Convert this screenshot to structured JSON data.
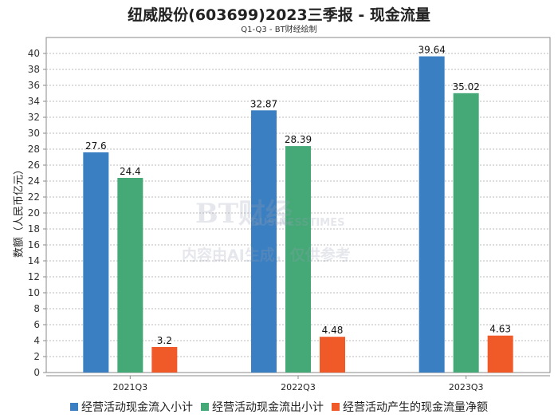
{
  "chart_data": {
    "type": "bar",
    "title": "纽威股份(603699)2023三季报 - 现金流量",
    "subtitle": "Q1-Q3 - BT财经绘制",
    "xlabel": "",
    "ylabel": "数额（人民币亿元）",
    "ylim": [
      0,
      42
    ],
    "yticks": [
      0,
      2,
      4,
      6,
      8,
      10,
      12,
      14,
      16,
      18,
      20,
      22,
      24,
      26,
      28,
      30,
      32,
      34,
      36,
      38,
      40
    ],
    "grid": true,
    "legend_position": "bottom",
    "categories": [
      "2021Q3",
      "2022Q3",
      "2023Q3"
    ],
    "series": [
      {
        "name": "经营活动现金流入小计",
        "color": "#3a7fc1",
        "values": [
          27.6,
          32.87,
          39.64
        ]
      },
      {
        "name": "经营活动现金流出小计",
        "color": "#45a977",
        "values": [
          24.4,
          28.39,
          35.02
        ]
      },
      {
        "name": "经营活动产生的现金流量净额",
        "color": "#ef5a28",
        "values": [
          3.2,
          4.48,
          4.63
        ]
      }
    ]
  },
  "watermark": {
    "brand": "BT财经",
    "brand_en": "BUSINESSTIMES",
    "notice": "内容由AI生成，仅供参考"
  }
}
